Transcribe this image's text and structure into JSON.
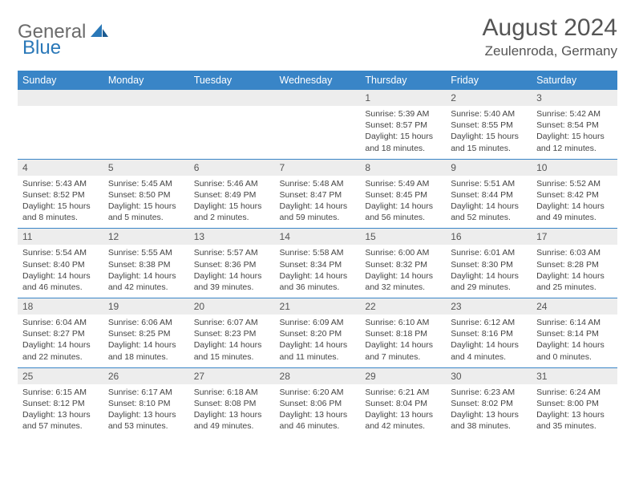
{
  "brand": {
    "part1": "General",
    "part2": "Blue"
  },
  "title": "August 2024",
  "location": "Zeulenroda, Germany",
  "colors": {
    "header_bg": "#3985c7",
    "header_text": "#ffffff",
    "daynum_bg": "#ededed",
    "border": "#3985c7",
    "logo_gray": "#6b6b6b",
    "logo_blue": "#2a78b8"
  },
  "weekdays": [
    "Sunday",
    "Monday",
    "Tuesday",
    "Wednesday",
    "Thursday",
    "Friday",
    "Saturday"
  ],
  "weeks": [
    [
      {},
      {},
      {},
      {},
      {
        "n": "1",
        "sr": "Sunrise: 5:39 AM",
        "ss": "Sunset: 8:57 PM",
        "dl": "Daylight: 15 hours and 18 minutes."
      },
      {
        "n": "2",
        "sr": "Sunrise: 5:40 AM",
        "ss": "Sunset: 8:55 PM",
        "dl": "Daylight: 15 hours and 15 minutes."
      },
      {
        "n": "3",
        "sr": "Sunrise: 5:42 AM",
        "ss": "Sunset: 8:54 PM",
        "dl": "Daylight: 15 hours and 12 minutes."
      }
    ],
    [
      {
        "n": "4",
        "sr": "Sunrise: 5:43 AM",
        "ss": "Sunset: 8:52 PM",
        "dl": "Daylight: 15 hours and 8 minutes."
      },
      {
        "n": "5",
        "sr": "Sunrise: 5:45 AM",
        "ss": "Sunset: 8:50 PM",
        "dl": "Daylight: 15 hours and 5 minutes."
      },
      {
        "n": "6",
        "sr": "Sunrise: 5:46 AM",
        "ss": "Sunset: 8:49 PM",
        "dl": "Daylight: 15 hours and 2 minutes."
      },
      {
        "n": "7",
        "sr": "Sunrise: 5:48 AM",
        "ss": "Sunset: 8:47 PM",
        "dl": "Daylight: 14 hours and 59 minutes."
      },
      {
        "n": "8",
        "sr": "Sunrise: 5:49 AM",
        "ss": "Sunset: 8:45 PM",
        "dl": "Daylight: 14 hours and 56 minutes."
      },
      {
        "n": "9",
        "sr": "Sunrise: 5:51 AM",
        "ss": "Sunset: 8:44 PM",
        "dl": "Daylight: 14 hours and 52 minutes."
      },
      {
        "n": "10",
        "sr": "Sunrise: 5:52 AM",
        "ss": "Sunset: 8:42 PM",
        "dl": "Daylight: 14 hours and 49 minutes."
      }
    ],
    [
      {
        "n": "11",
        "sr": "Sunrise: 5:54 AM",
        "ss": "Sunset: 8:40 PM",
        "dl": "Daylight: 14 hours and 46 minutes."
      },
      {
        "n": "12",
        "sr": "Sunrise: 5:55 AM",
        "ss": "Sunset: 8:38 PM",
        "dl": "Daylight: 14 hours and 42 minutes."
      },
      {
        "n": "13",
        "sr": "Sunrise: 5:57 AM",
        "ss": "Sunset: 8:36 PM",
        "dl": "Daylight: 14 hours and 39 minutes."
      },
      {
        "n": "14",
        "sr": "Sunrise: 5:58 AM",
        "ss": "Sunset: 8:34 PM",
        "dl": "Daylight: 14 hours and 36 minutes."
      },
      {
        "n": "15",
        "sr": "Sunrise: 6:00 AM",
        "ss": "Sunset: 8:32 PM",
        "dl": "Daylight: 14 hours and 32 minutes."
      },
      {
        "n": "16",
        "sr": "Sunrise: 6:01 AM",
        "ss": "Sunset: 8:30 PM",
        "dl": "Daylight: 14 hours and 29 minutes."
      },
      {
        "n": "17",
        "sr": "Sunrise: 6:03 AM",
        "ss": "Sunset: 8:28 PM",
        "dl": "Daylight: 14 hours and 25 minutes."
      }
    ],
    [
      {
        "n": "18",
        "sr": "Sunrise: 6:04 AM",
        "ss": "Sunset: 8:27 PM",
        "dl": "Daylight: 14 hours and 22 minutes."
      },
      {
        "n": "19",
        "sr": "Sunrise: 6:06 AM",
        "ss": "Sunset: 8:25 PM",
        "dl": "Daylight: 14 hours and 18 minutes."
      },
      {
        "n": "20",
        "sr": "Sunrise: 6:07 AM",
        "ss": "Sunset: 8:23 PM",
        "dl": "Daylight: 14 hours and 15 minutes."
      },
      {
        "n": "21",
        "sr": "Sunrise: 6:09 AM",
        "ss": "Sunset: 8:20 PM",
        "dl": "Daylight: 14 hours and 11 minutes."
      },
      {
        "n": "22",
        "sr": "Sunrise: 6:10 AM",
        "ss": "Sunset: 8:18 PM",
        "dl": "Daylight: 14 hours and 7 minutes."
      },
      {
        "n": "23",
        "sr": "Sunrise: 6:12 AM",
        "ss": "Sunset: 8:16 PM",
        "dl": "Daylight: 14 hours and 4 minutes."
      },
      {
        "n": "24",
        "sr": "Sunrise: 6:14 AM",
        "ss": "Sunset: 8:14 PM",
        "dl": "Daylight: 14 hours and 0 minutes."
      }
    ],
    [
      {
        "n": "25",
        "sr": "Sunrise: 6:15 AM",
        "ss": "Sunset: 8:12 PM",
        "dl": "Daylight: 13 hours and 57 minutes."
      },
      {
        "n": "26",
        "sr": "Sunrise: 6:17 AM",
        "ss": "Sunset: 8:10 PM",
        "dl": "Daylight: 13 hours and 53 minutes."
      },
      {
        "n": "27",
        "sr": "Sunrise: 6:18 AM",
        "ss": "Sunset: 8:08 PM",
        "dl": "Daylight: 13 hours and 49 minutes."
      },
      {
        "n": "28",
        "sr": "Sunrise: 6:20 AM",
        "ss": "Sunset: 8:06 PM",
        "dl": "Daylight: 13 hours and 46 minutes."
      },
      {
        "n": "29",
        "sr": "Sunrise: 6:21 AM",
        "ss": "Sunset: 8:04 PM",
        "dl": "Daylight: 13 hours and 42 minutes."
      },
      {
        "n": "30",
        "sr": "Sunrise: 6:23 AM",
        "ss": "Sunset: 8:02 PM",
        "dl": "Daylight: 13 hours and 38 minutes."
      },
      {
        "n": "31",
        "sr": "Sunrise: 6:24 AM",
        "ss": "Sunset: 8:00 PM",
        "dl": "Daylight: 13 hours and 35 minutes."
      }
    ]
  ]
}
